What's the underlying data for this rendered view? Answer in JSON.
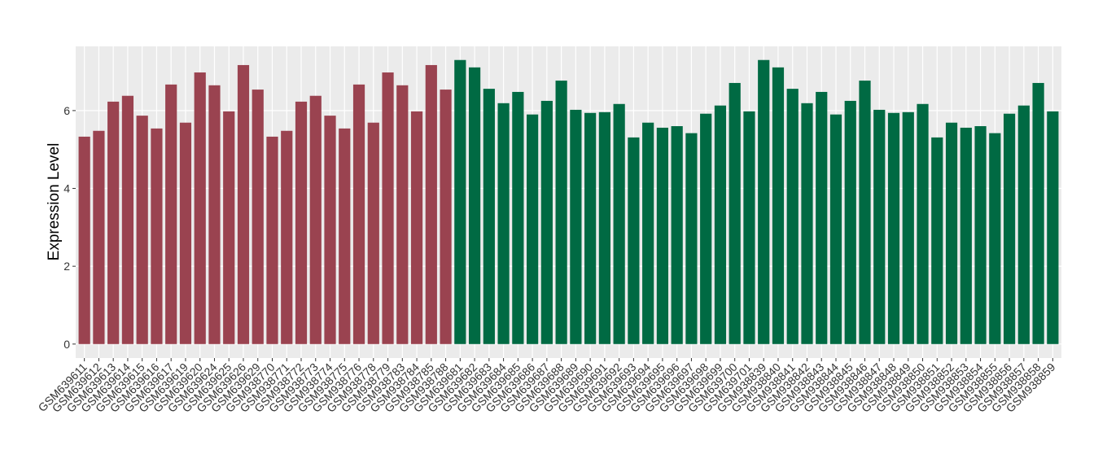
{
  "chart_data": {
    "type": "bar",
    "y_label": "Expression Level",
    "categories": [
      "GSM639611",
      "GSM639612",
      "GSM639613",
      "GSM639614",
      "GSM639615",
      "GSM639616",
      "GSM639617",
      "GSM639619",
      "GSM639620",
      "GSM639624",
      "GSM639625",
      "GSM639626",
      "GSM639629",
      "GSM938770",
      "GSM938771",
      "GSM938772",
      "GSM938773",
      "GSM938774",
      "GSM938775",
      "GSM938776",
      "GSM938778",
      "GSM938779",
      "GSM938783",
      "GSM938784",
      "GSM938785",
      "GSM938788",
      "GSM639681",
      "GSM639682",
      "GSM639683",
      "GSM639684",
      "GSM639685",
      "GSM639686",
      "GSM639687",
      "GSM639688",
      "GSM639689",
      "GSM639690",
      "GSM639691",
      "GSM639692",
      "GSM639693",
      "GSM639694",
      "GSM639695",
      "GSM639696",
      "GSM639697",
      "GSM639698",
      "GSM639699",
      "GSM639700",
      "GSM639701",
      "GSM938839",
      "GSM938840",
      "GSM938841",
      "GSM938842",
      "GSM938843",
      "GSM938844",
      "GSM938845",
      "GSM938846",
      "GSM938847",
      "GSM938848",
      "GSM938849",
      "GSM938850",
      "GSM938851",
      "GSM938852",
      "GSM938853",
      "GSM938854",
      "GSM938855",
      "GSM938856",
      "GSM938857",
      "GSM938858",
      "GSM938859"
    ],
    "values": [
      5.33,
      5.48,
      6.23,
      6.38,
      5.87,
      5.54,
      6.67,
      5.69,
      6.98,
      6.65,
      5.98,
      7.17,
      6.54,
      5.33,
      5.48,
      6.23,
      6.38,
      5.87,
      5.54,
      6.67,
      5.69,
      6.98,
      6.65,
      5.98,
      7.17,
      6.54,
      7.3,
      7.11,
      6.56,
      6.19,
      6.48,
      5.9,
      6.25,
      6.77,
      6.02,
      5.94,
      5.96,
      6.17,
      5.31,
      5.69,
      5.56,
      5.6,
      5.42,
      5.92,
      6.13,
      6.71,
      5.98,
      7.3,
      7.11,
      6.56,
      6.19,
      6.48,
      5.9,
      6.25,
      6.77,
      6.02,
      5.94,
      5.96,
      6.17,
      5.31,
      5.69,
      5.56,
      5.6,
      5.42,
      5.92,
      6.13,
      6.71,
      5.98
    ],
    "colors": [
      "#9a4350",
      "#9a4350",
      "#9a4350",
      "#9a4350",
      "#9a4350",
      "#9a4350",
      "#9a4350",
      "#9a4350",
      "#9a4350",
      "#9a4350",
      "#9a4350",
      "#9a4350",
      "#9a4350",
      "#9a4350",
      "#9a4350",
      "#9a4350",
      "#9a4350",
      "#9a4350",
      "#9a4350",
      "#9a4350",
      "#9a4350",
      "#9a4350",
      "#9a4350",
      "#9a4350",
      "#9a4350",
      "#9a4350",
      "#006a43",
      "#006a43",
      "#006a43",
      "#006a43",
      "#006a43",
      "#006a43",
      "#006a43",
      "#006a43",
      "#006a43",
      "#006a43",
      "#006a43",
      "#006a43",
      "#006a43",
      "#006a43",
      "#006a43",
      "#006a43",
      "#006a43",
      "#006a43",
      "#006a43",
      "#006a43",
      "#006a43",
      "#006a43",
      "#006a43",
      "#006a43",
      "#006a43",
      "#006a43",
      "#006a43",
      "#006a43",
      "#006a43",
      "#006a43",
      "#006a43",
      "#006a43",
      "#006a43",
      "#006a43",
      "#006a43",
      "#006a43",
      "#006a43",
      "#006a43",
      "#006a43",
      "#006a43",
      "#006a43",
      "#006a43"
    ],
    "ylim": [
      -0.36,
      7.65
    ],
    "yticks": [
      0,
      2,
      4,
      6
    ],
    "grid": true
  }
}
